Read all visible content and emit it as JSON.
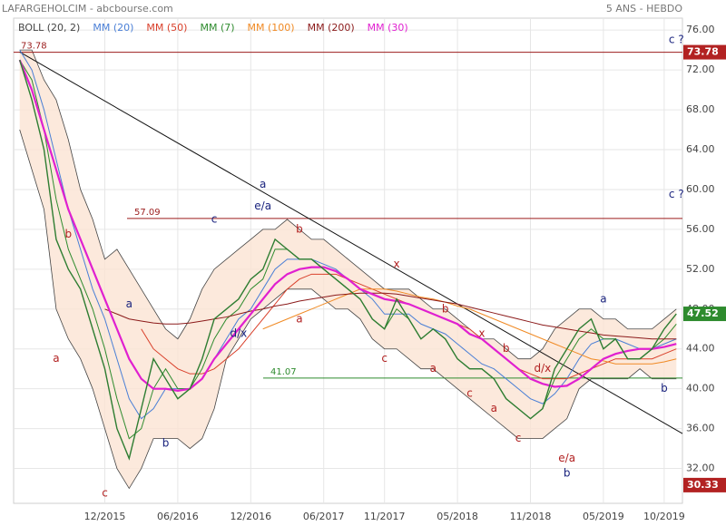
{
  "chart_data": {
    "type": "line",
    "title": "LAFARGEHOLCIM - abcbourse.com",
    "subtitle": "5 ANS - HEBDO",
    "categories": [
      null,
      null,
      null,
      null,
      null,
      null,
      null,
      "12/2015",
      null,
      null,
      null,
      null,
      null,
      "06/2016",
      null,
      null,
      null,
      null,
      null,
      "12/2016",
      null,
      null,
      null,
      null,
      null,
      "06/2017",
      null,
      null,
      null,
      null,
      "11/2017",
      null,
      null,
      null,
      null,
      null,
      "05/2018",
      null,
      null,
      null,
      null,
      null,
      "11/2018",
      null,
      null,
      null,
      null,
      null,
      "05/2019",
      null,
      null,
      null,
      null,
      "10/2019",
      null
    ],
    "ylim": [
      28.5,
      77.2
    ],
    "yticks": [
      {
        "value": 32,
        "label": "32.00"
      },
      {
        "value": 36,
        "label": "36.00"
      },
      {
        "value": 40,
        "label": "40.00"
      },
      {
        "value": 44,
        "label": "44.00"
      },
      {
        "value": 48,
        "label": "48.00"
      },
      {
        "value": 52,
        "label": "52.00"
      },
      {
        "value": 56,
        "label": "56.00"
      },
      {
        "value": 60,
        "label": "60.00"
      },
      {
        "value": 64,
        "label": "64.00"
      },
      {
        "value": 68,
        "label": "68.00"
      },
      {
        "value": 72,
        "label": "72.00"
      },
      {
        "value": 76,
        "label": "76.00"
      }
    ],
    "grid": true,
    "price": {
      "color": "#2e7d32",
      "values": [
        73,
        69,
        64,
        55,
        52,
        50,
        46,
        42,
        36,
        33,
        38,
        43,
        41,
        39,
        40,
        43,
        47,
        48,
        49,
        51,
        52,
        55,
        54,
        53,
        53,
        52,
        51,
        50,
        49,
        47,
        46,
        49,
        47,
        45,
        46,
        45,
        43,
        42,
        42,
        41,
        39,
        38,
        37,
        38,
        42,
        44,
        46,
        47,
        44,
        45,
        43,
        43,
        44,
        46,
        47.52
      ]
    },
    "bollinger": {
      "name": "BOLL (20, 2)",
      "color": "#444444",
      "fill": "#fbe3d3",
      "upper": [
        74,
        74,
        71,
        69,
        65,
        60,
        57,
        53,
        54,
        52,
        50,
        48,
        46,
        45,
        47,
        50,
        52,
        53,
        54,
        55,
        56,
        56,
        57,
        56,
        55,
        55,
        54,
        53,
        52,
        51,
        50,
        50,
        50,
        49,
        48,
        48,
        47,
        46,
        45,
        45,
        44,
        43,
        43,
        44,
        46,
        47,
        48,
        48,
        47,
        47,
        46,
        46,
        46,
        47,
        48
      ],
      "lower": [
        66,
        62,
        58,
        48,
        45,
        43,
        40,
        36,
        32,
        30,
        32,
        35,
        35,
        35,
        34,
        35,
        38,
        43,
        45,
        47,
        48,
        49,
        50,
        50,
        50,
        49,
        48,
        48,
        47,
        45,
        44,
        44,
        43,
        42,
        42,
        41,
        40,
        39,
        38,
        37,
        36,
        35,
        35,
        35,
        36,
        37,
        40,
        41,
        41,
        41,
        41,
        42,
        41,
        41,
        41
      ]
    },
    "series": [
      {
        "name": "MM (20)",
        "color": "#4a7fd6",
        "values": [
          74,
          72,
          68,
          63,
          58,
          54,
          50,
          47,
          43,
          39,
          37,
          38,
          40,
          40,
          40,
          41,
          43,
          45,
          47,
          48,
          50,
          52,
          53,
          53,
          53,
          52.5,
          52,
          51,
          50,
          49,
          47.5,
          47.5,
          47.5,
          46.5,
          46,
          45.5,
          44.5,
          43.5,
          42.5,
          42,
          41,
          40,
          39,
          38.5,
          39.5,
          41,
          43,
          44.5,
          45,
          45,
          44.5,
          44,
          44,
          44.5,
          45
        ]
      },
      {
        "name": "MM (50)",
        "color": "#d9402b",
        "values": [
          null,
          null,
          null,
          null,
          null,
          null,
          null,
          null,
          null,
          null,
          46,
          44,
          43,
          42,
          41.5,
          41.5,
          42,
          43,
          44,
          45.5,
          47,
          48.5,
          50,
          51,
          51.5,
          51.5,
          51.5,
          51,
          50.5,
          50,
          49.5,
          49,
          48.5,
          48,
          47.5,
          47,
          46.5,
          46,
          45,
          44,
          43,
          42,
          41.5,
          41,
          41,
          41,
          41.5,
          42,
          42.5,
          43,
          43,
          43,
          43,
          43.5,
          44
        ]
      },
      {
        "name": "MM (7)",
        "color": "#2e8b2e",
        "values": [
          73,
          71,
          66,
          59,
          54,
          51,
          48,
          44,
          39,
          35,
          36,
          40,
          42,
          40,
          40,
          42,
          45,
          47,
          48,
          50,
          51,
          54,
          54,
          53,
          53,
          52,
          51,
          50,
          49,
          47,
          46,
          48,
          47,
          45,
          46,
          45,
          43,
          42,
          42,
          41,
          39,
          38,
          37,
          38,
          41,
          43,
          45,
          46,
          45,
          45,
          43,
          43,
          44,
          45,
          46.5
        ]
      },
      {
        "name": "MM (100)",
        "color": "#f08a24",
        "values": [
          null,
          null,
          null,
          null,
          null,
          null,
          null,
          null,
          null,
          null,
          null,
          null,
          null,
          null,
          null,
          null,
          null,
          null,
          null,
          null,
          46,
          46.5,
          47,
          47.5,
          48,
          48.5,
          49,
          49.5,
          50,
          50,
          50,
          49.8,
          49.5,
          49.2,
          49,
          48.7,
          48.3,
          48,
          47.5,
          47,
          46.5,
          46,
          45.5,
          45,
          44.5,
          44,
          43.5,
          43,
          42.8,
          42.5,
          42.5,
          42.5,
          42.5,
          42.7,
          43
        ]
      },
      {
        "name": "MM (200)",
        "color": "#8b1a1a",
        "values": [
          null,
          null,
          null,
          null,
          null,
          null,
          null,
          48,
          47.5,
          47,
          46.8,
          46.6,
          46.5,
          46.5,
          46.6,
          46.8,
          47,
          47.2,
          47.5,
          47.8,
          48,
          48.3,
          48.5,
          48.8,
          49,
          49.2,
          49.4,
          49.5,
          49.6,
          49.6,
          49.6,
          49.5,
          49.3,
          49.1,
          48.9,
          48.7,
          48.5,
          48.2,
          47.9,
          47.6,
          47.3,
          47,
          46.7,
          46.4,
          46.2,
          46,
          45.8,
          45.6,
          45.4,
          45.3,
          45.2,
          45.1,
          45,
          45,
          45
        ]
      },
      {
        "name": "MM (30)",
        "color": "#e020d0",
        "values": [
          73,
          70,
          66,
          62,
          58,
          55,
          52,
          49,
          46,
          43,
          41,
          40,
          40,
          39.8,
          40,
          41,
          43,
          44.5,
          46,
          47.5,
          49,
          50.5,
          51.5,
          52,
          52.2,
          52.2,
          51.8,
          51,
          50,
          49.5,
          49,
          48.8,
          48.5,
          48,
          47.5,
          47,
          46.5,
          45.5,
          45,
          44,
          43,
          42,
          41,
          40.5,
          40.2,
          40.3,
          41,
          42,
          43,
          43.5,
          43.8,
          44,
          44,
          44.2,
          44.5
        ]
      }
    ],
    "levels": [
      {
        "value": 73.78,
        "color": "#9b1c1c"
      },
      {
        "value": 57.09,
        "color": "#9b1c1c"
      },
      {
        "value": 41.07,
        "color": "#2e8b2e"
      }
    ],
    "low": 30.33,
    "trendline": {
      "color": "#111111",
      "start": [
        0,
        73.8
      ],
      "end": [
        54.5,
        35.5
      ]
    },
    "annotations": [
      {
        "text": "a",
        "x": 3,
        "y": 43,
        "color": "#b22222"
      },
      {
        "text": "b",
        "x": 4,
        "y": 55.5,
        "color": "#b22222"
      },
      {
        "text": "c",
        "x": 7,
        "y": 29.5,
        "color": "#b22222"
      },
      {
        "text": "a",
        "x": 9,
        "y": 48.5,
        "color": "#1a237e"
      },
      {
        "text": "b",
        "x": 12,
        "y": 34.5,
        "color": "#1a237e"
      },
      {
        "text": "c",
        "x": 16,
        "y": 57,
        "color": "#1a237e"
      },
      {
        "text": "d/x",
        "x": 18,
        "y": 45.5,
        "color": "#1a237e"
      },
      {
        "text": "a",
        "x": 20,
        "y": 60.5,
        "color": "#1a237e"
      },
      {
        "text": "e/a",
        "x": 20,
        "y": 58.3,
        "color": "#1a237e"
      },
      {
        "text": "b",
        "x": 23,
        "y": 56,
        "color": "#b22222"
      },
      {
        "text": "a",
        "x": 23,
        "y": 47,
        "color": "#b22222"
      },
      {
        "text": "x",
        "x": 31,
        "y": 52.5,
        "color": "#b22222"
      },
      {
        "text": "c",
        "x": 30,
        "y": 43,
        "color": "#b22222"
      },
      {
        "text": "a",
        "x": 34,
        "y": 42,
        "color": "#b22222"
      },
      {
        "text": "b",
        "x": 35,
        "y": 48,
        "color": "#b22222"
      },
      {
        "text": "x",
        "x": 38,
        "y": 45.5,
        "color": "#b22222"
      },
      {
        "text": "c",
        "x": 37,
        "y": 39.5,
        "color": "#b22222"
      },
      {
        "text": "b",
        "x": 40,
        "y": 44,
        "color": "#b22222"
      },
      {
        "text": "a",
        "x": 39,
        "y": 38,
        "color": "#b22222"
      },
      {
        "text": "c",
        "x": 41,
        "y": 35,
        "color": "#b22222"
      },
      {
        "text": "d/x",
        "x": 43,
        "y": 42,
        "color": "#b22222"
      },
      {
        "text": "e/a",
        "x": 45,
        "y": 33,
        "color": "#b22222"
      },
      {
        "text": "b",
        "x": 45,
        "y": 31.5,
        "color": "#1a237e"
      },
      {
        "text": "a",
        "x": 48,
        "y": 49,
        "color": "#1a237e"
      },
      {
        "text": "b",
        "x": 53,
        "y": 40,
        "color": "#1a237e"
      },
      {
        "text": "c ?",
        "x": 54,
        "y": 75,
        "color": "#1a237e"
      },
      {
        "text": "c ?",
        "x": 54,
        "y": 59.5,
        "color": "#1a237e"
      }
    ]
  }
}
